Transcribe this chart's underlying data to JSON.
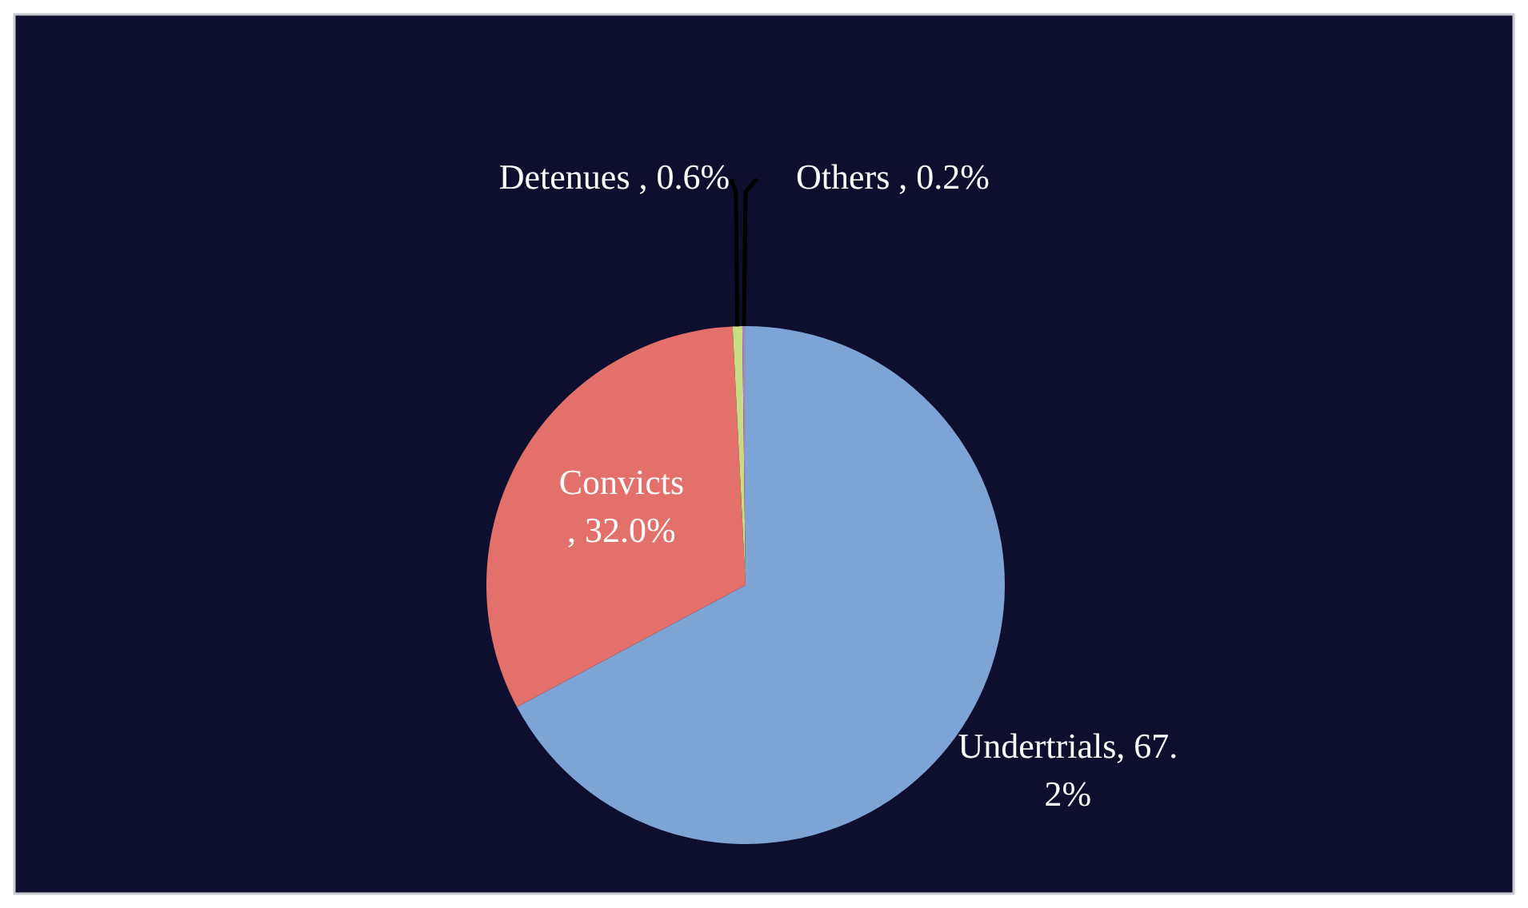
{
  "chart_data": {
    "type": "pie",
    "categories": [
      "Undertrials",
      "Convicts",
      "Detenues",
      "Others"
    ],
    "values": [
      67.2,
      32.0,
      0.6,
      0.2
    ],
    "colors": [
      "#7ea4d6",
      "#e4706c",
      "#c8dc84",
      "#a08cc4"
    ],
    "value_labels": [
      ", 67.2%",
      " , 32.0%",
      " , 0.6%",
      " , 0.2%"
    ],
    "legend": false
  }
}
